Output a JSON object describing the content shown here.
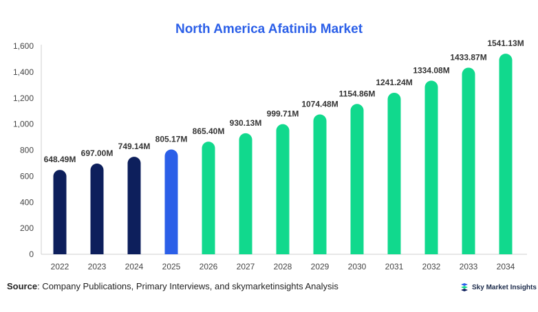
{
  "chart_data": {
    "type": "bar",
    "title": "North America Afatinib Market",
    "categories": [
      "2022",
      "2023",
      "2024",
      "2025",
      "2026",
      "2027",
      "2028",
      "2029",
      "2030",
      "2031",
      "2032",
      "2033",
      "2034"
    ],
    "values": [
      648.49,
      697.0,
      749.14,
      805.17,
      865.4,
      930.13,
      999.71,
      1074.48,
      1154.86,
      1241.24,
      1334.08,
      1433.87,
      1541.13
    ],
    "data_labels": [
      "648.49M",
      "697.00M",
      "749.14M",
      "805.17M",
      "865.40M",
      "930.13M",
      "999.71M",
      "1074.48M",
      "1154.86M",
      "1241.24M",
      "1334.08M",
      "1433.87M",
      "1541.13M"
    ],
    "bar_colors": [
      "#0d1f5c",
      "#0d1f5c",
      "#0d1f5c",
      "#2b5fe8",
      "#11d98d",
      "#11d98d",
      "#11d98d",
      "#11d98d",
      "#11d98d",
      "#11d98d",
      "#11d98d",
      "#11d98d",
      "#11d98d"
    ],
    "ylim": [
      0,
      1600
    ],
    "yticks": [
      0,
      200,
      400,
      600,
      800,
      1000,
      1200,
      1400,
      1600
    ],
    "ytick_labels": [
      "0",
      "200",
      "400",
      "600",
      "800",
      "1,000",
      "1,200",
      "1,400",
      "1,600"
    ],
    "xlabel": "",
    "ylabel": "",
    "grid": false,
    "legend": "none"
  },
  "footer": {
    "source_label": "Source",
    "source_text": ": Company Publications, Primary Interviews, and skymarketinsights Analysis",
    "brand_name": "Sky Market Insights",
    "brand_icon": "sky-market-insights-logo-icon",
    "brand_color": "#2b5fe8"
  }
}
